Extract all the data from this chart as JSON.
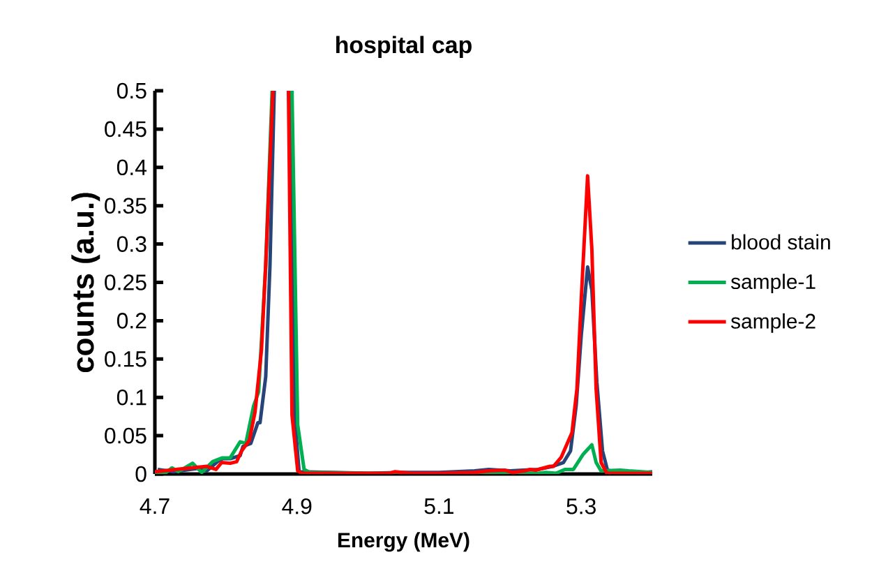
{
  "chart_data": {
    "type": "line",
    "title": "hospital cap",
    "xlabel": "Energy (MeV)",
    "ylabel": "counts (a.u.)",
    "xlim": [
      4.7,
      5.4
    ],
    "xticks": [
      4.7,
      4.9,
      5.1,
      5.3
    ],
    "ylim": [
      0,
      0.5
    ],
    "yticks": [
      0,
      0.05,
      0.1,
      0.15,
      0.2,
      0.25,
      0.3,
      0.35,
      0.4,
      0.45,
      0.5
    ],
    "legend": "right",
    "grid": false,
    "series": [
      {
        "name": "blood stain",
        "color": "#264478",
        "x": [
          4.704,
          4.726,
          4.766,
          4.773,
          4.788,
          4.795,
          4.806,
          4.82,
          4.824,
          4.835,
          4.845,
          4.848,
          4.856,
          4.862,
          4.868,
          4.879,
          4.89,
          4.897,
          4.903,
          4.95,
          5.0,
          5.05,
          5.1,
          5.15,
          5.17,
          5.2,
          5.24,
          5.26,
          5.275,
          5.285,
          5.293,
          5.3,
          5.309,
          5.315,
          5.322,
          5.33,
          5.337,
          5.35,
          5.37,
          5.38,
          5.4
        ],
        "values": [
          0.006,
          0.003,
          0.008,
          0.004,
          0.016,
          0.02,
          0.02,
          0.024,
          0.036,
          0.04,
          0.067,
          0.067,
          0.127,
          0.273,
          0.5,
          null,
          0.5,
          0.071,
          0.003,
          0.002,
          0.001,
          0.002,
          0.002,
          0.004,
          0.006,
          0.004,
          0.006,
          0.01,
          0.015,
          0.03,
          0.09,
          0.18,
          0.27,
          0.24,
          0.12,
          0.03,
          0.005,
          0.002,
          0.003,
          0.001,
          0.003
        ]
      },
      {
        "name": "sample-1",
        "color": "#00b050",
        "x": [
          4.7,
          4.713,
          4.724,
          4.733,
          4.753,
          4.766,
          4.781,
          4.795,
          4.806,
          4.82,
          4.828,
          4.839,
          4.846,
          4.856,
          4.865,
          4.879,
          4.893,
          4.901,
          4.91,
          4.918,
          5.0,
          5.1,
          5.2,
          5.24,
          5.25,
          5.265,
          5.277,
          5.289,
          5.303,
          5.315,
          5.321,
          5.328,
          5.355,
          5.367,
          5.4
        ],
        "values": [
          0.002,
          0,
          0.008,
          0.003,
          0.014,
          0.002,
          0.016,
          0.021,
          0.021,
          0.042,
          0.04,
          0.089,
          0.107,
          0.273,
          0.5,
          null,
          0.5,
          0.064,
          0.006,
          0.002,
          0.001,
          0,
          0.001,
          0.001,
          0.002,
          0.001,
          0.006,
          0.006,
          0.026,
          0.038,
          0.015,
          0.004,
          0.005,
          0.004,
          0.002
        ]
      },
      {
        "name": "sample-2",
        "color": "#ff0000",
        "x": [
          4.7,
          4.73,
          4.751,
          4.773,
          4.786,
          4.794,
          4.806,
          4.815,
          4.822,
          4.833,
          4.841,
          4.85,
          4.856,
          4.866,
          4.877,
          4.888,
          4.893,
          4.901,
          4.907,
          4.93,
          4.96,
          5.0,
          5.03,
          5.038,
          5.06,
          5.1,
          5.15,
          5.17,
          5.193,
          5.203,
          5.22,
          5.228,
          5.236,
          5.256,
          5.261,
          5.272,
          5.287,
          5.294,
          5.3,
          5.309,
          5.315,
          5.321,
          5.328,
          5.336,
          5.4
        ],
        "values": [
          0.003,
          0.006,
          0.008,
          0.01,
          0.006,
          0.015,
          0.014,
          0.016,
          0.03,
          0.044,
          0.081,
          0.162,
          0.273,
          0.5,
          null,
          0.5,
          0.077,
          0.004,
          0.001,
          0.001,
          0.001,
          0.001,
          0.001,
          0.003,
          0.001,
          0.001,
          0.002,
          0.004,
          0.005,
          0.002,
          0.004,
          0.006,
          0.005,
          0.01,
          0.01,
          0.022,
          0.054,
          0.111,
          0.227,
          0.389,
          0.293,
          0.111,
          0.015,
          0.001,
          0.001
        ]
      }
    ]
  }
}
